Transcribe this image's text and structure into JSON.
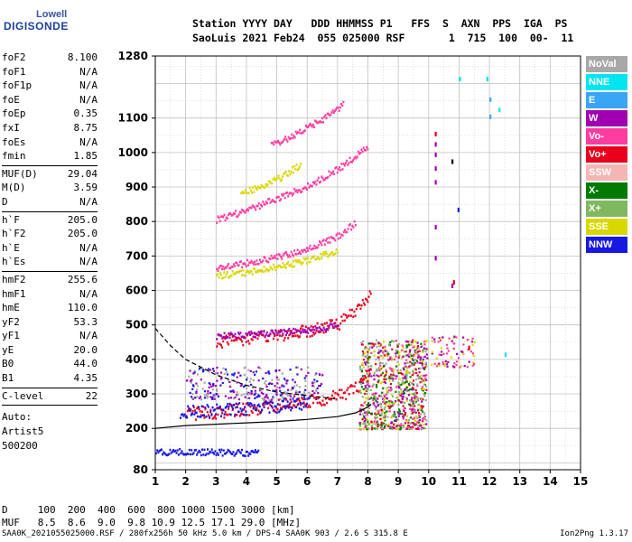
{
  "logo": {
    "line1": "Lowell",
    "line2": "DIGISONDE"
  },
  "header": {
    "line1": "Station YYYY DAY   DDD HHMMSS P1   FFS  S  AXN  PPS  IGA  PS",
    "line2": "SaoLuis 2021 Feb24  055 025000 RSF       1  715  100  00-  11"
  },
  "params": [
    {
      "k": "foF2",
      "v": "8.100"
    },
    {
      "k": "foF1",
      "v": "N/A"
    },
    {
      "k": "foF1p",
      "v": "N/A"
    },
    {
      "k": "foE",
      "v": "N/A"
    },
    {
      "k": "foEp",
      "v": "0.35"
    },
    {
      "k": "fxI",
      "v": "8.75"
    },
    {
      "k": "foEs",
      "v": "N/A"
    },
    {
      "k": "fmin",
      "v": "1.85"
    },
    {
      "sep": true
    },
    {
      "k": "MUF(D)",
      "v": "29.04"
    },
    {
      "k": "M(D)",
      "v": "3.59"
    },
    {
      "k": "D",
      "v": "N/A"
    },
    {
      "sep": true
    },
    {
      "k": "h`F",
      "v": "205.0"
    },
    {
      "k": "h`F2",
      "v": "205.0"
    },
    {
      "k": "h`E",
      "v": "N/A"
    },
    {
      "k": "h`Es",
      "v": "N/A"
    },
    {
      "sep": true
    },
    {
      "k": "hmF2",
      "v": "255.6"
    },
    {
      "k": "hmF1",
      "v": "N/A"
    },
    {
      "k": "hmE",
      "v": "110.0"
    },
    {
      "k": "yF2",
      "v": "53.3"
    },
    {
      "k": "yF1",
      "v": "N/A"
    },
    {
      "k": "yE",
      "v": "20.0"
    },
    {
      "k": "B0",
      "v": "44.0"
    },
    {
      "k": "B1",
      "v": "4.35"
    },
    {
      "sep": true
    },
    {
      "k": "C-level",
      "v": "22"
    },
    {
      "sep": true
    }
  ],
  "auto": [
    "Auto:",
    "Artist5",
    "500200"
  ],
  "legend": [
    {
      "label": "NoVal",
      "color": "#a8a8a8"
    },
    {
      "label": "NNE",
      "color": "#00e6f0"
    },
    {
      "label": "E",
      "color": "#3ba5f5"
    },
    {
      "label": "W",
      "color": "#a000b0"
    },
    {
      "label": "Vo-",
      "color": "#ff3ca0"
    },
    {
      "label": "Vo+",
      "color": "#e8001c"
    },
    {
      "label": "SSW",
      "color": "#f5b5b5"
    },
    {
      "label": "X-",
      "color": "#007a00"
    },
    {
      "label": "X+",
      "color": "#80b860"
    },
    {
      "label": "SSE",
      "color": "#d8d800"
    },
    {
      "label": "NNW",
      "color": "#1818e0"
    }
  ],
  "muf_table": {
    "d_row": "D     100  200  400  600  800 1000 1500 3000 [km]",
    "muf_row": "MUF   8.5  8.6  9.0  9.8 10.9 12.5 17.1 29.0 [MHz]"
  },
  "footer": {
    "left": "SAA0K_2021055025000.RSF / 280fx256h 50 kHz 5.0 km / DPS-4 SAA0K 903 / 2.6 S 315.8 E",
    "right": "Ion2Png 1.3.17"
  },
  "chart_data": {
    "type": "scatter",
    "x_range": [
      1,
      15
    ],
    "y_range": [
      80,
      1280
    ],
    "x_ticks": [
      1,
      2,
      3,
      4,
      5,
      6,
      7,
      8,
      9,
      10,
      11,
      12,
      13,
      14,
      15
    ],
    "y_ticks": [
      80,
      200,
      300,
      400,
      500,
      600,
      700,
      800,
      900,
      1000,
      1100,
      1280
    ],
    "grid": true,
    "traces": [
      {
        "name": "Vo+",
        "color": "#e8001c",
        "x": [
          2.0,
          3.0,
          4.0,
          5.0,
          6.0,
          7.0,
          7.6,
          8.0,
          8.1
        ],
        "y": [
          245,
          250,
          258,
          268,
          280,
          295,
          320,
          360,
          400
        ]
      },
      {
        "name": "NNW",
        "color": "#1818e0",
        "x": [
          1.8,
          2.4,
          3.0,
          3.6,
          4.2,
          4.8,
          5.4,
          6.0
        ],
        "y": [
          248,
          252,
          255,
          258,
          262,
          266,
          270,
          276
        ]
      },
      {
        "name": "NNW-E",
        "color": "#1818e0",
        "x": [
          1.0,
          1.6,
          2.2,
          2.8,
          3.4,
          4.0,
          4.4
        ],
        "y": [
          135,
          134,
          134,
          133,
          133,
          132,
          132
        ]
      },
      {
        "name": "Vo+2",
        "color": "#e8001c",
        "x": [
          3.0,
          4.0,
          5.0,
          6.0,
          7.0,
          7.8,
          8.1
        ],
        "y": [
          455,
          462,
          472,
          485,
          505,
          560,
          600
        ]
      },
      {
        "name": "W",
        "color": "#a000b0",
        "x": [
          3.0,
          3.6,
          4.2,
          5.0,
          6.0,
          7.0
        ],
        "y": [
          470,
          472,
          476,
          480,
          488,
          500
        ]
      },
      {
        "name": "Vo-3",
        "color": "#ff3ca0",
        "x": [
          3.0,
          4.0,
          5.0,
          6.0,
          7.0,
          7.6
        ],
        "y": [
          668,
          682,
          700,
          722,
          760,
          800
        ]
      },
      {
        "name": "SSE3",
        "color": "#d8d800",
        "x": [
          3.0,
          4.0,
          5.0,
          6.0,
          7.0
        ],
        "y": [
          645,
          655,
          672,
          690,
          720
        ]
      },
      {
        "name": "Vo-4",
        "color": "#ff3ca0",
        "x": [
          3.0,
          4.0,
          5.0,
          6.0,
          7.0,
          8.0
        ],
        "y": [
          808,
          835,
          870,
          905,
          955,
          1020
        ]
      },
      {
        "name": "Vo-5",
        "color": "#ff3ca0",
        "x": [
          4.8,
          5.5,
          6.0,
          6.5,
          7.2
        ],
        "y": [
          1025,
          1050,
          1075,
          1100,
          1145
        ]
      },
      {
        "name": "SSE4",
        "color": "#d8d800",
        "x": [
          3.8,
          4.5,
          5.2,
          5.8
        ],
        "y": [
          885,
          905,
          935,
          970
        ]
      }
    ],
    "model_curves": [
      {
        "name": "solid",
        "color": "#000000",
        "x": [
          1.0,
          2.0,
          3.0,
          4.0,
          5.0,
          6.0,
          7.0,
          7.6,
          8.0,
          8.1
        ],
        "y": [
          200,
          208,
          212,
          216,
          220,
          226,
          234,
          245,
          262,
          270
        ]
      },
      {
        "name": "dashed",
        "color": "#000000",
        "x": [
          1.0,
          1.5,
          2.0,
          3.0,
          4.0,
          5.0,
          6.0,
          7.0
        ],
        "y": [
          490,
          440,
          400,
          355,
          325,
          305,
          295,
          285
        ]
      }
    ],
    "scatter_clusters": [
      {
        "x": [
          7.7,
          9.9
        ],
        "y": [
          200,
          460
        ],
        "colors": [
          "#e8001c",
          "#d8d800",
          "#80b860",
          "#a000b0",
          "#ff3ca0",
          "#a8a8a8",
          "#007a00"
        ],
        "n": 900
      },
      {
        "x": [
          9.6,
          11.5
        ],
        "y": [
          380,
          470
        ],
        "colors": [
          "#a000b0",
          "#ff3ca0",
          "#d8d800"
        ],
        "n": 90
      },
      {
        "x": [
          2.0,
          6.5
        ],
        "y": [
          285,
          380
        ],
        "colors": [
          "#a8a8a8",
          "#1818e0",
          "#a000b0"
        ],
        "n": 300
      }
    ],
    "isolated_points": [
      {
        "x": 10.2,
        "y": 1060,
        "color": "#e8001c"
      },
      {
        "x": 10.2,
        "y": 1030,
        "color": "#a000b0"
      },
      {
        "x": 10.2,
        "y": 1000,
        "color": "#a000b0"
      },
      {
        "x": 10.2,
        "y": 960,
        "color": "#a000b0"
      },
      {
        "x": 10.2,
        "y": 920,
        "color": "#a000b0"
      },
      {
        "x": 10.2,
        "y": 790,
        "color": "#a000b0"
      },
      {
        "x": 10.2,
        "y": 700,
        "color": "#a000b0"
      },
      {
        "x": 10.75,
        "y": 980,
        "color": "#000000"
      },
      {
        "x": 10.75,
        "y": 620,
        "color": "#a000b0"
      },
      {
        "x": 10.8,
        "y": 630,
        "color": "#e8001c"
      },
      {
        "x": 10.95,
        "y": 840,
        "color": "#1818e0"
      },
      {
        "x": 11.0,
        "y": 1220,
        "color": "#00e6f0"
      },
      {
        "x": 11.9,
        "y": 1220,
        "color": "#00e6f0"
      },
      {
        "x": 12.0,
        "y": 1160,
        "color": "#3ba5f5"
      },
      {
        "x": 12.3,
        "y": 1130,
        "color": "#00e6f0"
      },
      {
        "x": 12.0,
        "y": 1110,
        "color": "#3ba5f5"
      },
      {
        "x": 12.5,
        "y": 420,
        "color": "#00e6f0"
      },
      {
        "x": 11.3,
        "y": 440,
        "color": "#e8001c"
      }
    ]
  }
}
